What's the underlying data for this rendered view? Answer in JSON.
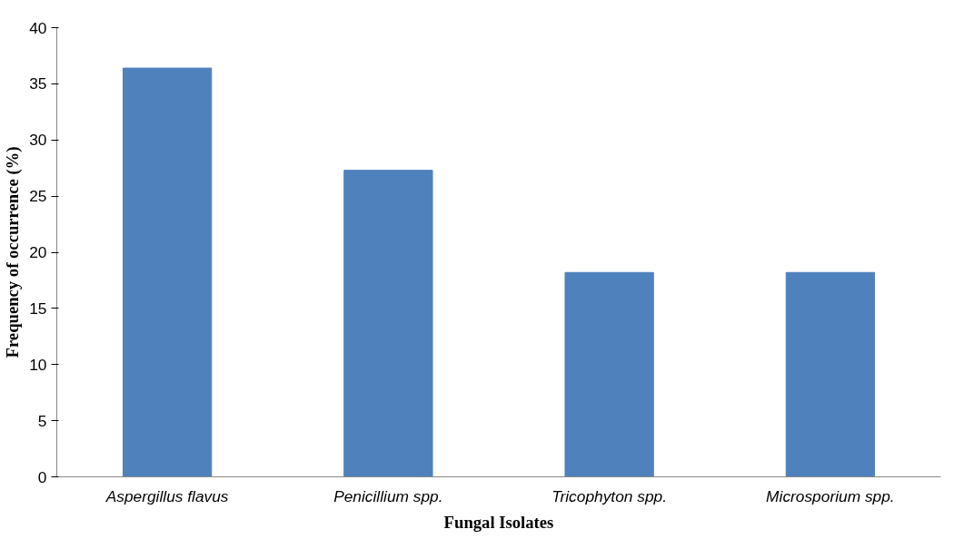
{
  "chart_data": {
    "type": "bar",
    "xlabel": "Fungal Isolates",
    "ylabel": "Frequency of occurrence (%)",
    "categories": [
      "Aspergillus flavus",
      "Penicillium spp.",
      "Tricophyton spp.",
      "Microsporium spp."
    ],
    "values": [
      36.4,
      27.3,
      18.2,
      18.2
    ],
    "color": "#4f81bd",
    "ylim": [
      0,
      40
    ],
    "yticks": [
      0,
      5,
      10,
      15,
      20,
      25,
      30,
      35,
      40
    ],
    "grid": false
  }
}
